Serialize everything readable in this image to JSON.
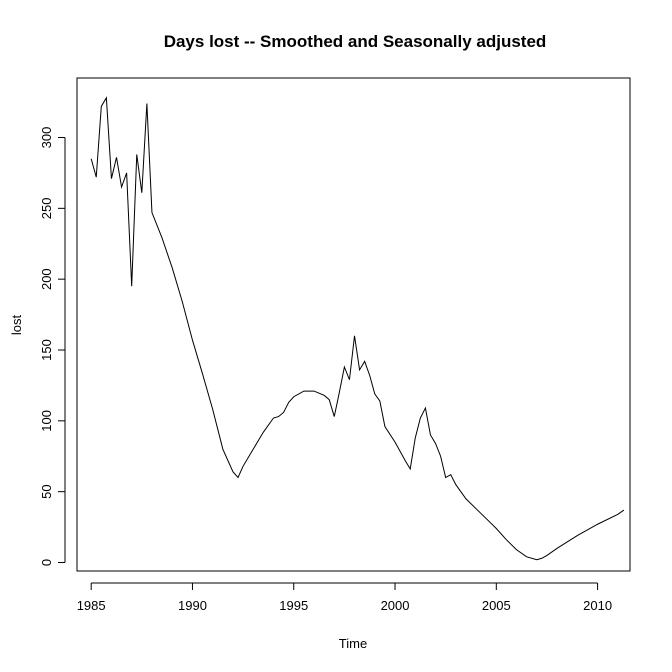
{
  "chart_data": {
    "type": "line",
    "title": "Days lost -- Smoothed and Seasonally adjusted",
    "xlabel": "Time",
    "ylabel": "lost",
    "xlim": [
      1984.3,
      2011.6
    ],
    "ylim": [
      -6,
      342
    ],
    "x_ticks": [
      1985,
      1990,
      1995,
      2000,
      2005,
      2010
    ],
    "y_ticks": [
      0,
      50,
      100,
      150,
      200,
      250,
      300
    ],
    "grid": false,
    "legend": "none",
    "line_color": "#000000",
    "series": [
      {
        "x": [
          1985.0,
          1985.25,
          1985.5,
          1985.75,
          1986.0,
          1986.25,
          1986.5,
          1986.75,
          1987.0,
          1987.25,
          1987.5,
          1987.75,
          1988.0,
          1988.5,
          1989.0,
          1989.5,
          1990.0,
          1990.5,
          1991.0,
          1991.5,
          1992.0,
          1992.25,
          1992.5,
          1993.0,
          1993.5,
          1994.0,
          1994.25,
          1994.5,
          1994.75,
          1995.0,
          1995.5,
          1996.0,
          1996.5,
          1996.75,
          1997.0,
          1997.25,
          1997.5,
          1997.75,
          1998.0,
          1998.25,
          1998.5,
          1998.75,
          1999.0,
          1999.25,
          1999.5,
          2000.0,
          2000.5,
          2000.75,
          2001.0,
          2001.25,
          2001.5,
          2001.75,
          2002.0,
          2002.25,
          2002.5,
          2002.75,
          2003.0,
          2003.5,
          2004.0,
          2004.5,
          2005.0,
          2005.5,
          2006.0,
          2006.5,
          2007.0,
          2007.25,
          2007.5,
          2008.0,
          2009.0,
          2010.0,
          2011.0,
          2011.3
        ],
        "y": [
          285,
          272,
          322,
          328,
          271,
          286,
          265,
          275,
          195,
          288,
          261,
          324,
          247,
          229,
          208,
          184,
          157,
          133,
          108,
          80,
          64,
          60,
          68,
          80,
          92,
          102,
          103,
          106,
          113,
          117,
          121,
          121,
          118,
          115,
          103,
          120,
          138,
          129,
          160,
          136,
          142,
          132,
          119,
          114,
          96,
          85,
          72,
          66,
          88,
          102,
          109,
          90,
          84,
          75,
          60,
          62,
          55,
          45,
          38,
          31,
          24,
          16,
          9,
          4,
          2,
          3,
          5,
          10,
          19,
          27,
          34,
          37
        ]
      }
    ]
  }
}
